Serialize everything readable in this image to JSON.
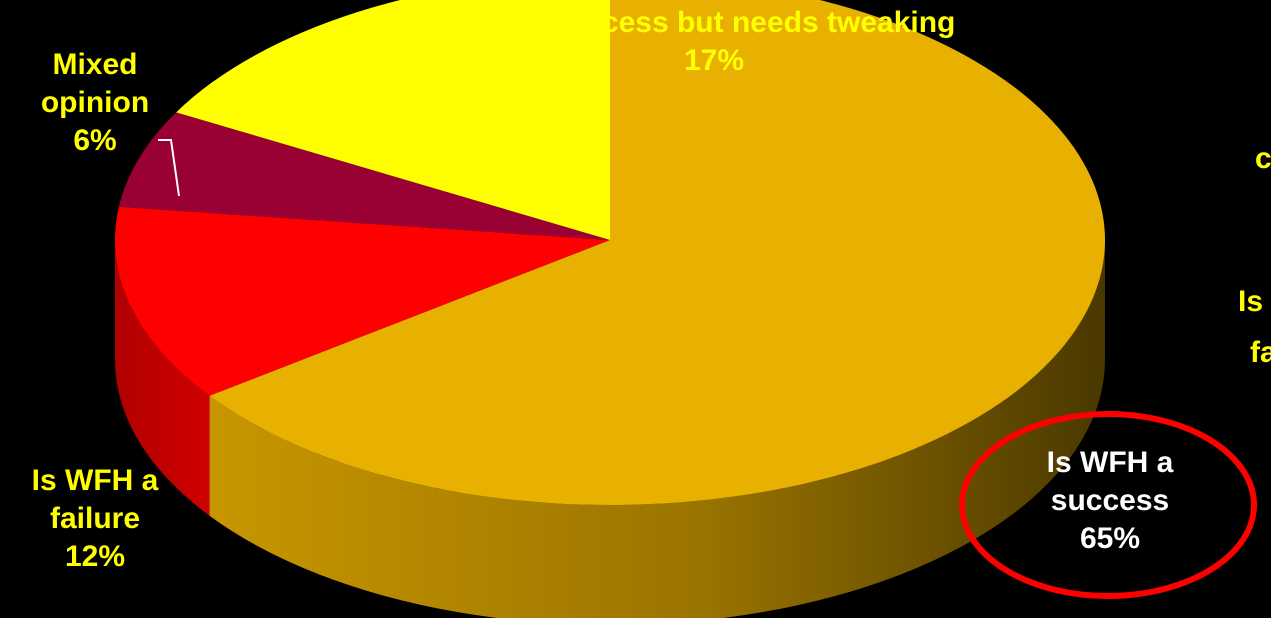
{
  "chart_data": {
    "type": "pie",
    "style": "3d",
    "slices": [
      {
        "label": "Is WFH a success",
        "value": 65,
        "display": "65%",
        "color": "#E8B000"
      },
      {
        "label": "Is WFH a failure",
        "value": 12,
        "display": "12%",
        "color": "#FF0000"
      },
      {
        "label": "Mixed opinion",
        "value": 6,
        "display": "6%",
        "color": "#990033"
      },
      {
        "label": "It’s a success but needs tweaking",
        "value": 17,
        "display": "17%",
        "color": "#FFFF00"
      }
    ],
    "annotation": {
      "shape": "ellipse",
      "color": "#FF0000",
      "highlights": "Is WFH a success"
    },
    "labels": {
      "tweaking": {
        "line1": "It’s a success but needs tweaking",
        "pct": "17%"
      },
      "mixed": {
        "line1": "Mixed",
        "line2": "opinion",
        "pct": "6%"
      },
      "failure": {
        "line1": "Is WFH a",
        "line2": "failure",
        "pct": "12%"
      },
      "success": {
        "line1": "Is WFH a",
        "line2": "success",
        "pct": "65%"
      },
      "partial_right_1": "c",
      "partial_right_2": "Is",
      "partial_right_3": "fa"
    }
  }
}
